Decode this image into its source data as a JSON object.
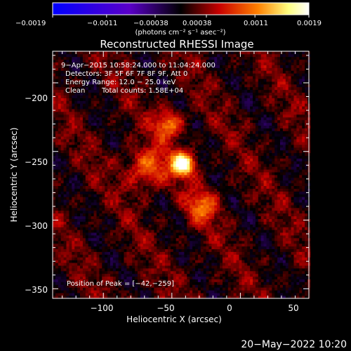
{
  "chart_data": {
    "type": "heatmap",
    "title": "Reconstructed RHESSI Image",
    "xlabel": "Heliocentric X (arcsec)",
    "ylabel": "Heliocentric Y (arcsec)",
    "xlim": [
      -137,
      50
    ],
    "ylim": [
      -357,
      -177
    ],
    "xticks": [
      -100,
      -50,
      0,
      50
    ],
    "xtick_labels": [
      "−100",
      "−50",
      "0",
      "50"
    ],
    "yticks": [
      -200,
      -250,
      -300,
      -350
    ],
    "ytick_labels": [
      "−200",
      "−250",
      "−300",
      "−350"
    ],
    "colorbar": {
      "range": [
        -0.0019,
        0.0019
      ],
      "tick_labels": [
        "−0.0019",
        "−0.0011",
        "−0.00038",
        "0.00038",
        "0.0011",
        "0.0019"
      ],
      "unit": "(photons cm⁻² s⁻¹ asec⁻²)",
      "colormap": [
        "#0000ff",
        "#5a00c8",
        "#000000",
        "#c80000",
        "#ff8000",
        "#ffff80",
        "#ffffff"
      ]
    },
    "annotations": {
      "time_range": "9−Apr−2015 10:58:24.000 to 11:04:24.000",
      "detectors": "Detectors: 3F 5F 6F 7F 8F 9F, Att 0",
      "energy_range": "Energy Range: 12.0 − 25.0 keV",
      "method": "Clean",
      "total_counts": "Total counts: 1.58E+04",
      "peak": "Position of Peak = [−42,−259]"
    },
    "peak_position": [
      -42,
      -259
    ],
    "sources": [
      {
        "x": -42,
        "y": -259,
        "amplitude": 1.0,
        "sigma": 6
      },
      {
        "x": -52,
        "y": -230,
        "amplitude": 0.55,
        "sigma": 7
      },
      {
        "x": -28,
        "y": -290,
        "amplitude": 0.45,
        "sigma": 8
      },
      {
        "x": -68,
        "y": -262,
        "amplitude": 0.5,
        "sigma": 10
      }
    ]
  },
  "footer": {
    "date": "20−May−2022 10:20"
  }
}
